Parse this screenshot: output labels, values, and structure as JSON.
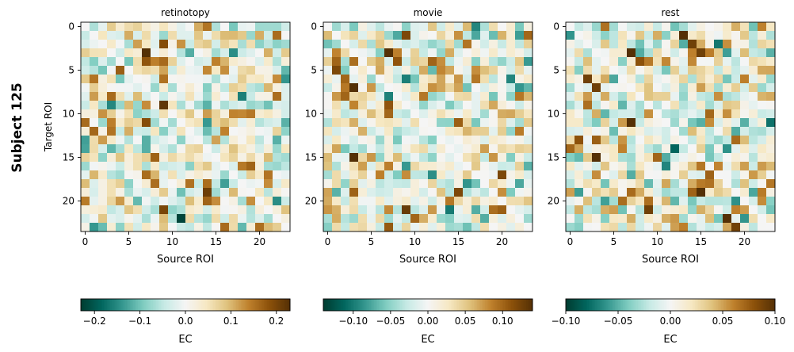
{
  "figure": {
    "row_label": "Subject 125"
  },
  "palette": {
    "cmap": [
      "#003c30",
      "#01665e",
      "#35978f",
      "#80cdc1",
      "#c7eae5",
      "#f5f5f5",
      "#f6e8c3",
      "#dfc27d",
      "#bf812d",
      "#8c510a",
      "#543005"
    ],
    "axis": "#000000",
    "background": "#ffffff"
  },
  "chart_data": [
    {
      "type": "heatmap",
      "title": "retinotopy",
      "xlabel": "Source ROI",
      "ylabel": "Target ROI",
      "n": 24,
      "xticks": [
        0,
        5,
        10,
        15,
        20
      ],
      "yticks": [
        0,
        5,
        10,
        15,
        20
      ],
      "colorbar": {
        "label": "EC",
        "vmin": -0.23,
        "vmax": 0.23,
        "ticks": [
          -0.2,
          -0.1,
          0.0,
          0.1,
          0.2
        ],
        "tick_labels": [
          "−0.2",
          "−0.1",
          "0.0",
          "0.1",
          "0.2"
        ]
      },
      "seed": 125,
      "values_note": "24x24 effective connectivity matrix; cell values approximated",
      "highlights": [
        [
          2,
          9,
          0.19
        ],
        [
          3,
          7,
          0.23
        ],
        [
          4,
          7,
          0.18
        ],
        [
          4,
          8,
          0.14
        ],
        [
          4,
          9,
          0.16
        ],
        [
          6,
          1,
          0.15
        ],
        [
          8,
          3,
          0.16
        ],
        [
          9,
          7,
          0.13
        ],
        [
          9,
          9,
          0.22
        ],
        [
          11,
          7,
          0.19
        ],
        [
          19,
          14,
          0.21
        ],
        [
          20,
          15,
          0.13
        ],
        [
          21,
          9,
          0.2
        ],
        [
          22,
          11,
          -0.22
        ],
        [
          17,
          21,
          0.15
        ],
        [
          18,
          21,
          0.13
        ]
      ]
    },
    {
      "type": "heatmap",
      "title": "movie",
      "xlabel": "Source ROI",
      "ylabel": "",
      "n": 24,
      "xticks": [
        0,
        5,
        10,
        15,
        20
      ],
      "yticks": [
        0,
        5,
        10,
        15,
        20
      ],
      "colorbar": {
        "label": "EC",
        "vmin": -0.14,
        "vmax": 0.14,
        "ticks": [
          -0.1,
          -0.05,
          0.0,
          0.05,
          0.1
        ],
        "tick_labels": [
          "−0.10",
          "−0.05",
          "0.00",
          "0.05",
          "0.10"
        ]
      },
      "seed": 371,
      "values_note": "24x24 effective connectivity matrix; cell values approximated",
      "highlights": [
        [
          1,
          9,
          0.12
        ],
        [
          3,
          7,
          0.14
        ],
        [
          4,
          8,
          0.11
        ],
        [
          5,
          1,
          0.12
        ],
        [
          6,
          2,
          0.1
        ],
        [
          7,
          3,
          0.14
        ],
        [
          9,
          7,
          0.11
        ],
        [
          10,
          7,
          0.1
        ],
        [
          15,
          3,
          0.14
        ],
        [
          17,
          20,
          0.12
        ],
        [
          19,
          15,
          0.12
        ],
        [
          21,
          9,
          0.13
        ],
        [
          22,
          10,
          0.1
        ]
      ]
    },
    {
      "type": "heatmap",
      "title": "rest",
      "xlabel": "Source ROI",
      "ylabel": "",
      "n": 24,
      "xticks": [
        0,
        5,
        10,
        15,
        20
      ],
      "yticks": [
        0,
        5,
        10,
        15,
        20
      ],
      "colorbar": {
        "label": "EC",
        "vmin": -0.1,
        "vmax": 0.1,
        "ticks": [
          -0.1,
          -0.05,
          0.0,
          0.05,
          0.1
        ],
        "tick_labels": [
          "−0.10",
          "−0.05",
          "0.00",
          "0.05",
          "0.10"
        ]
      },
      "seed": 977,
      "values_note": "24x24 effective connectivity matrix; cell values approximated",
      "highlights": [
        [
          1,
          13,
          0.1
        ],
        [
          2,
          14,
          0.09
        ],
        [
          3,
          7,
          0.1
        ],
        [
          3,
          15,
          0.09
        ],
        [
          4,
          8,
          0.08
        ],
        [
          6,
          2,
          0.09
        ],
        [
          7,
          3,
          0.09
        ],
        [
          11,
          7,
          0.1
        ],
        [
          13,
          1,
          0.08
        ],
        [
          14,
          12,
          -0.08
        ],
        [
          15,
          3,
          0.1
        ],
        [
          19,
          15,
          0.1
        ],
        [
          21,
          9,
          0.09
        ],
        [
          22,
          18,
          0.1
        ],
        [
          23,
          19,
          0.09
        ]
      ]
    }
  ]
}
